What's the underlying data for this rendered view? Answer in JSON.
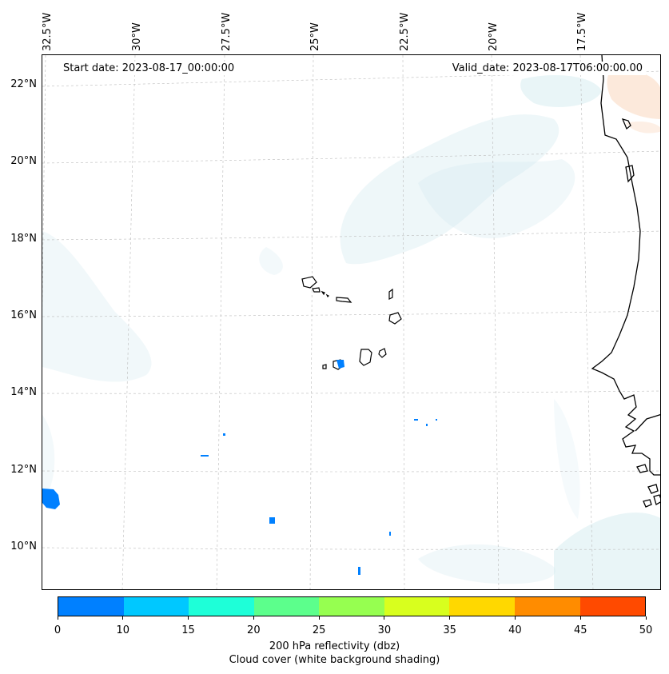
{
  "map": {
    "start_date": "Start date: 2023-08-17_00:00:00",
    "valid_date": "Valid_date: 2023-08-17T06:00:00.00",
    "lon_labels": [
      "32.5°W",
      "30°W",
      "27.5°W",
      "25°W",
      "22.5°W",
      "20°W",
      "17.5°W"
    ],
    "lat_labels": [
      "22°N",
      "20°N",
      "18°N",
      "16°N",
      "14°N",
      "12°N",
      "10°N"
    ]
  },
  "colorbar": {
    "ticks": [
      "0",
      "10",
      "15",
      "20",
      "25",
      "30",
      "35",
      "40",
      "45",
      "50"
    ],
    "colors": [
      "#0080ff",
      "#00c8ff",
      "#1effd8",
      "#5cff8c",
      "#96ff50",
      "#d8ff1e",
      "#ffd800",
      "#ff8c00",
      "#ff4a00"
    ],
    "label": "200 hPa reflectivity (dbz)",
    "sublabel": "Cloud cover (white background shading)"
  },
  "chart_data": {
    "type": "heatmap",
    "title": "",
    "variable": "200 hPa reflectivity (dbz)",
    "overlay": "Cloud cover (white background shading)",
    "longitude_ticks": [
      "32.5°W",
      "30°W",
      "27.5°W",
      "25°W",
      "22.5°W",
      "20°W",
      "17.5°W"
    ],
    "latitude_ticks": [
      "22°N",
      "20°N",
      "18°N",
      "16°N",
      "14°N",
      "12°N",
      "10°N"
    ],
    "value_range": [
      0,
      50
    ],
    "levels": [
      0,
      10,
      15,
      20,
      25,
      30,
      35,
      40,
      45,
      50
    ]
  }
}
